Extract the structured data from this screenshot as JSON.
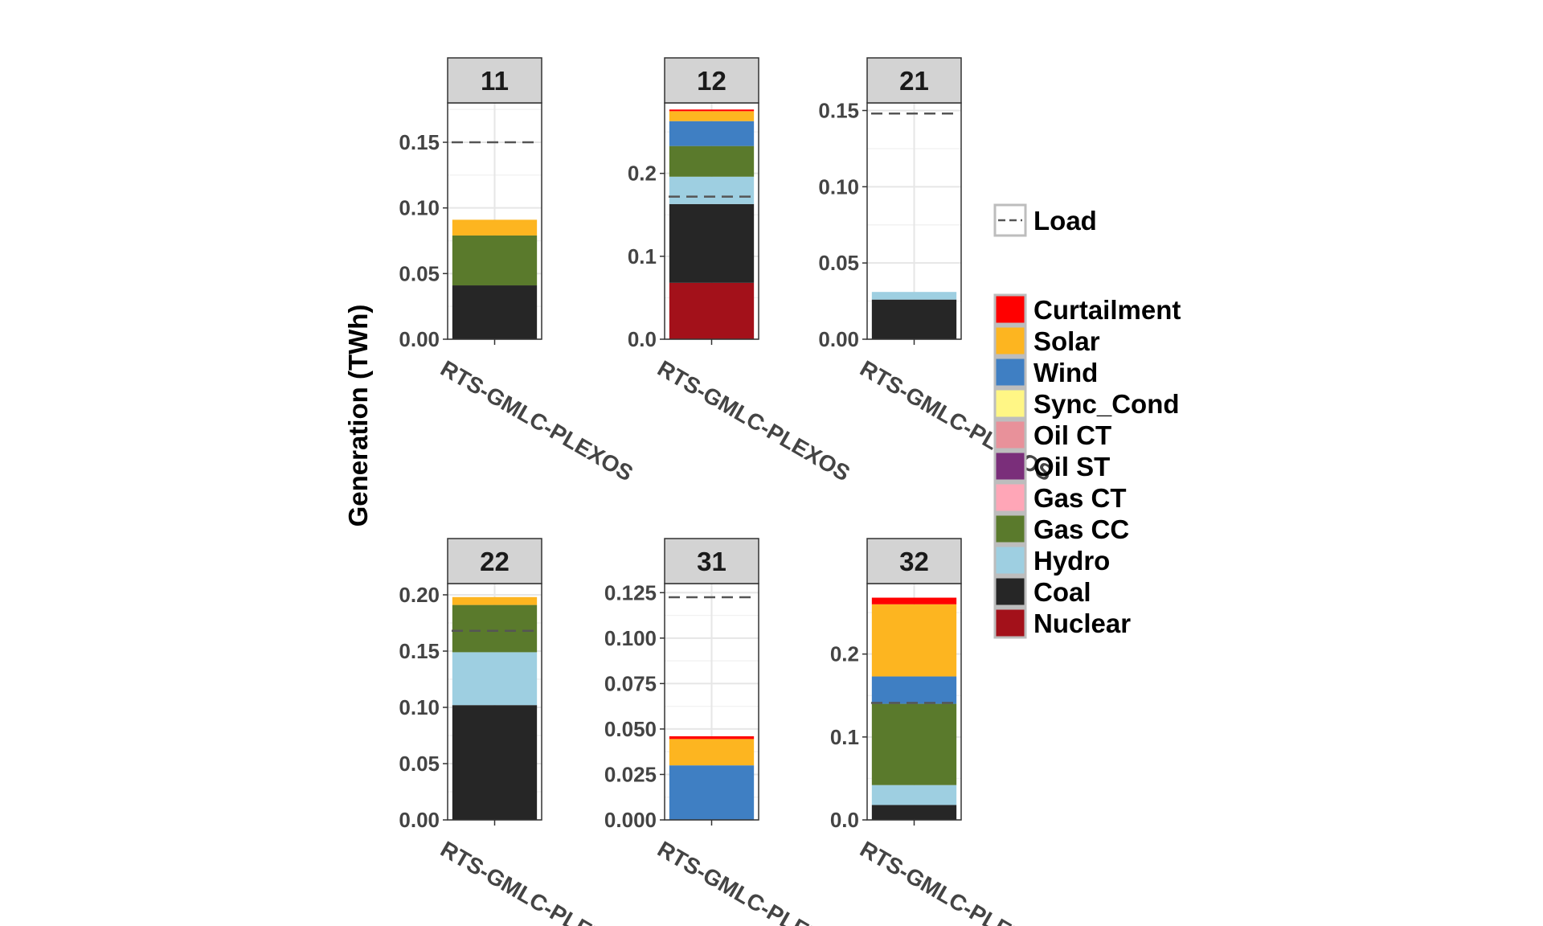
{
  "chart_data": {
    "type": "bar",
    "stacked": true,
    "ylabel": "Generation (TWh)",
    "xlabel": "",
    "facet_variable": "area",
    "categories": [
      "RTS-GMLC-PLEXOS"
    ],
    "legend_placement": "right",
    "legends": {
      "load": {
        "label": "Load",
        "line_style": "dashed",
        "color": "#555555"
      },
      "fuel": {
        "entries": [
          {
            "name": "Curtailment",
            "color": "#FF0000"
          },
          {
            "name": "Solar",
            "color": "#FDB520"
          },
          {
            "name": "Wind",
            "color": "#3F7FC3"
          },
          {
            "name": "Sync_Cond",
            "color": "#FFF685"
          },
          {
            "name": "Oil CT",
            "color": "#E8919A"
          },
          {
            "name": "Oil ST",
            "color": "#7A2E7A"
          },
          {
            "name": "Gas CT",
            "color": "#FFA6B7"
          },
          {
            "name": "Gas CC",
            "color": "#5A7A2C"
          },
          {
            "name": "Hydro",
            "color": "#9ECFE1"
          },
          {
            "name": "Coal",
            "color": "#262626"
          },
          {
            "name": "Nuclear",
            "color": "#A3111A"
          }
        ]
      }
    },
    "panels": [
      {
        "label": "11",
        "ylim": [
          0,
          0.18
        ],
        "yticks": [
          0,
          0.05,
          0.1,
          0.15
        ],
        "ytick_labels": [
          "0.00",
          "0.05",
          "0.10",
          "0.15"
        ],
        "load": 0.15,
        "stack": [
          {
            "name": "Coal",
            "value": 0.041
          },
          {
            "name": "Gas CC",
            "value": 0.038
          },
          {
            "name": "Solar",
            "value": 0.012
          }
        ]
      },
      {
        "label": "12",
        "ylim": [
          0,
          0.285
        ],
        "yticks": [
          0,
          0.1,
          0.2
        ],
        "ytick_labels": [
          "0.0",
          "0.1",
          "0.2"
        ],
        "load": 0.172,
        "stack": [
          {
            "name": "Nuclear",
            "value": 0.068
          },
          {
            "name": "Coal",
            "value": 0.095
          },
          {
            "name": "Hydro",
            "value": 0.033
          },
          {
            "name": "Gas CC",
            "value": 0.037
          },
          {
            "name": "Wind",
            "value": 0.03
          },
          {
            "name": "Solar",
            "value": 0.012
          },
          {
            "name": "Curtailment",
            "value": 0.002
          }
        ]
      },
      {
        "label": "21",
        "ylim": [
          0,
          0.155
        ],
        "yticks": [
          0,
          0.05,
          0.1,
          0.15
        ],
        "ytick_labels": [
          "0.00",
          "0.05",
          "0.10",
          "0.15"
        ],
        "load": 0.148,
        "stack": [
          {
            "name": "Coal",
            "value": 0.026
          },
          {
            "name": "Hydro",
            "value": 0.005
          }
        ]
      },
      {
        "label": "22",
        "ylim": [
          0,
          0.21
        ],
        "yticks": [
          0,
          0.05,
          0.1,
          0.15,
          0.2
        ],
        "ytick_labels": [
          "0.00",
          "0.05",
          "0.10",
          "0.15",
          "0.20"
        ],
        "load": 0.168,
        "stack": [
          {
            "name": "Coal",
            "value": 0.102
          },
          {
            "name": "Hydro",
            "value": 0.047
          },
          {
            "name": "Gas CC",
            "value": 0.042
          },
          {
            "name": "Solar",
            "value": 0.007
          }
        ]
      },
      {
        "label": "31",
        "ylim": [
          0,
          0.13
        ],
        "yticks": [
          0,
          0.025,
          0.05,
          0.075,
          0.1,
          0.125
        ],
        "ytick_labels": [
          "0.000",
          "0.025",
          "0.050",
          "0.075",
          "0.100",
          "0.125"
        ],
        "load": 0.1225,
        "stack": [
          {
            "name": "Wind",
            "value": 0.03
          },
          {
            "name": "Solar",
            "value": 0.0145
          },
          {
            "name": "Curtailment",
            "value": 0.0015
          }
        ]
      },
      {
        "label": "32",
        "ylim": [
          0,
          0.285
        ],
        "yticks": [
          0,
          0.1,
          0.2
        ],
        "ytick_labels": [
          "0.0",
          "0.1",
          "0.2"
        ],
        "load": 0.141,
        "stack": [
          {
            "name": "Coal",
            "value": 0.018
          },
          {
            "name": "Hydro",
            "value": 0.024
          },
          {
            "name": "Gas CC",
            "value": 0.098
          },
          {
            "name": "Wind",
            "value": 0.033
          },
          {
            "name": "Solar",
            "value": 0.087
          },
          {
            "name": "Curtailment",
            "value": 0.008
          }
        ]
      }
    ]
  }
}
